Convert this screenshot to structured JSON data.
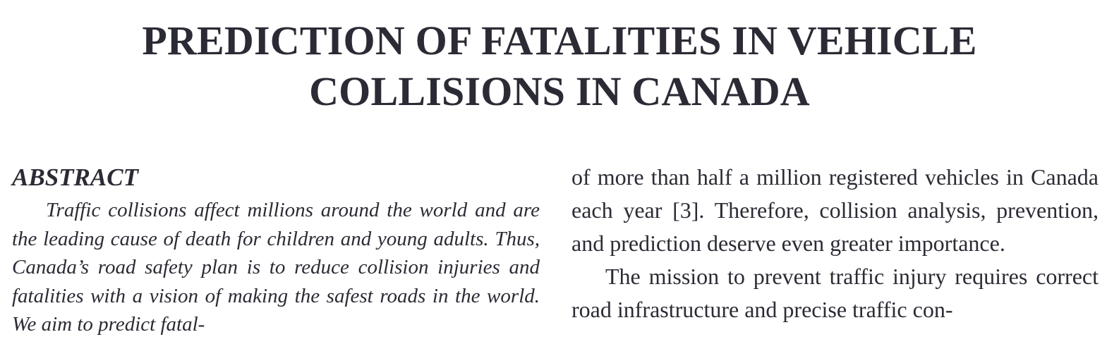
{
  "paper": {
    "title_line1": "PREDICTION OF FATALITIES IN VEHICLE",
    "title_line2": "COLLISIONS IN CANADA",
    "abstract_heading": "ABSTRACT",
    "abstract_text": "Traffic collisions affect millions around the world and are the leading cause of death for children and young adults. Thus, Canada’s road safety plan is to reduce collision injuries and fatalities with a vision of making the safest roads in the world. We aim to predict fatal-",
    "right_para1": "of more than half a million registered vehicles in Canada each year [3]. Therefore, collision analysis, prevention, and prediction deserve even greater im­portance.",
    "right_para2": "The mission to prevent traffic injury requires correct road infrastructure and precise traffic con-"
  }
}
